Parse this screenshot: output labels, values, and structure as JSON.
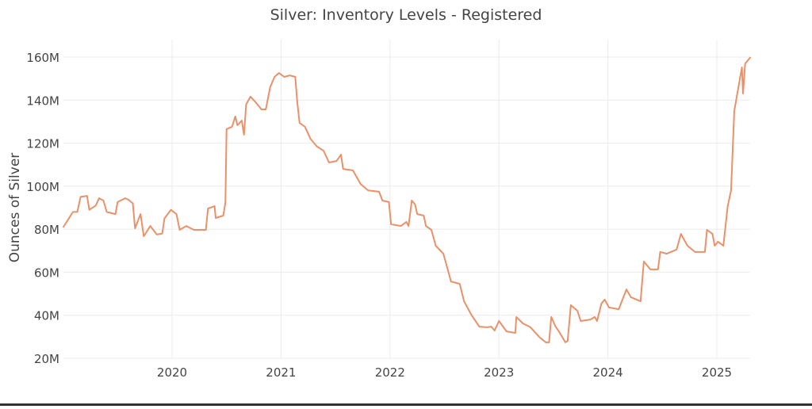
{
  "chart_data": {
    "type": "line",
    "title": "Silver: Inventory Levels - Registered",
    "xlabel": "",
    "ylabel": "Ounces of Silver",
    "xlim": [
      2019.0,
      2025.31
    ],
    "ylim": [
      20,
      160
    ],
    "grid": true,
    "x_ticks": [
      2020,
      2021,
      2022,
      2023,
      2024,
      2025
    ],
    "x_tick_labels": [
      "2020",
      "2021",
      "2022",
      "2023",
      "2024",
      "2025"
    ],
    "y_ticks": [
      20,
      40,
      60,
      80,
      100,
      120,
      140,
      160
    ],
    "y_tick_labels": [
      "20M",
      "40M",
      "60M",
      "80M",
      "100M",
      "120M",
      "140M",
      "160M"
    ],
    "series": [
      {
        "name": "Registered",
        "color": "#e8916a",
        "x": [
          2019.0,
          2019.04,
          2019.09,
          2019.13,
          2019.16,
          2019.22,
          2019.24,
          2019.3,
          2019.33,
          2019.37,
          2019.4,
          2019.48,
          2019.5,
          2019.57,
          2019.6,
          2019.64,
          2019.66,
          2019.71,
          2019.74,
          2019.8,
          2019.86,
          2019.91,
          2019.93,
          2019.99,
          2020.04,
          2020.07,
          2020.13,
          2020.2,
          2020.31,
          2020.33,
          2020.39,
          2020.4,
          2020.47,
          2020.49,
          2020.5,
          2020.55,
          2020.58,
          2020.6,
          2020.64,
          2020.66,
          2020.68,
          2020.72,
          2020.76,
          2020.82,
          2020.86,
          2020.9,
          2020.94,
          2020.98,
          2021.03,
          2021.08,
          2021.13,
          2021.15,
          2021.17,
          2021.22,
          2021.27,
          2021.33,
          2021.39,
          2021.44,
          2021.51,
          2021.55,
          2021.57,
          2021.66,
          2021.73,
          2021.8,
          2021.9,
          2021.93,
          2021.99,
          2022.01,
          2022.1,
          2022.15,
          2022.17,
          2022.2,
          2022.23,
          2022.25,
          2022.31,
          2022.33,
          2022.38,
          2022.42,
          2022.49,
          2022.53,
          2022.56,
          2022.64,
          2022.68,
          2022.75,
          2022.82,
          2022.89,
          2022.93,
          2022.96,
          2023.0,
          2023.07,
          2023.15,
          2023.16,
          2023.22,
          2023.29,
          2023.37,
          2023.43,
          2023.46,
          2023.48,
          2023.52,
          2023.55,
          2023.61,
          2023.63,
          2023.66,
          2023.72,
          2023.75,
          2023.84,
          2023.88,
          2023.9,
          2023.94,
          2023.97,
          2024.01,
          2024.1,
          2024.17,
          2024.21,
          2024.3,
          2024.33,
          2024.39,
          2024.46,
          2024.48,
          2024.54,
          2024.63,
          2024.67,
          2024.73,
          2024.8,
          2024.89,
          2024.91,
          2024.96,
          2024.98,
          2025.01,
          2025.06,
          2025.1,
          2025.13,
          2025.16,
          2025.23,
          2025.24,
          2025.26,
          2025.31
        ],
        "y": [
          80.8,
          84,
          88,
          88,
          95,
          95.5,
          89,
          91,
          94.4,
          93.3,
          88,
          87,
          92.6,
          94.4,
          93.7,
          92,
          80.4,
          87,
          76.7,
          81.5,
          77.5,
          78,
          85,
          89,
          87,
          79.7,
          81.5,
          79.7,
          79.7,
          89.6,
          90.7,
          85.2,
          86.3,
          92.6,
          126.5,
          127.6,
          132.4,
          128.3,
          130.5,
          123.9,
          138,
          141.6,
          139.4,
          135.7,
          135.7,
          146,
          150.8,
          152.6,
          150.8,
          151.5,
          150.8,
          138.6,
          129.4,
          127.6,
          122,
          118.4,
          116.5,
          111,
          111.7,
          114.7,
          108,
          107.3,
          101,
          98,
          97.4,
          93.3,
          92.6,
          82.3,
          81.5,
          83.4,
          81.5,
          93.3,
          91.5,
          87,
          86.3,
          81.5,
          79.7,
          72.3,
          68.6,
          61.3,
          55.7,
          54.6,
          46.5,
          39.9,
          34.7,
          34.4,
          34.7,
          32.9,
          37.3,
          32.5,
          31.8,
          39.2,
          36.2,
          34.4,
          29.9,
          27.4,
          27.4,
          39.2,
          34.7,
          32.5,
          27.4,
          28,
          44.7,
          42.1,
          37.3,
          38,
          39.2,
          37.3,
          45.4,
          47.3,
          43.6,
          42.8,
          52,
          48.4,
          46.5,
          65,
          61.3,
          61.3,
          69.4,
          68.6,
          70.5,
          77.8,
          72.3,
          69.4,
          69.4,
          79.7,
          77.8,
          72.3,
          74.2,
          72.3,
          90.7,
          98,
          135,
          155.2,
          143,
          157,
          160
        ]
      }
    ]
  }
}
